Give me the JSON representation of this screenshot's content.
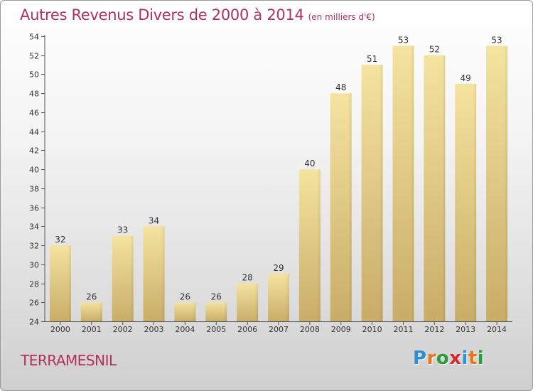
{
  "header": {
    "title": "Autres Revenus Divers de 2000 à 2014",
    "unit": "(en milliers d'€)"
  },
  "footer": {
    "place": "TERRAMESNIL",
    "brand_letters": [
      "P",
      "r",
      "o",
      "x",
      "i",
      "t",
      "i"
    ],
    "brand_colors": [
      "#2f8fd3",
      "#e8761c",
      "#2a9a3a",
      "#d6262e",
      "#2f8fd3",
      "#e8761c",
      "#2a9a3a"
    ]
  },
  "chart_data": {
    "type": "bar",
    "categories": [
      "2000",
      "2001",
      "2002",
      "2003",
      "2004",
      "2005",
      "2006",
      "2007",
      "2008",
      "2009",
      "2010",
      "2011",
      "2012",
      "2013",
      "2014"
    ],
    "values": [
      32,
      26,
      33,
      34,
      26,
      26,
      28,
      29,
      40,
      48,
      51,
      53,
      52,
      49,
      53
    ],
    "ylim": [
      24,
      54
    ],
    "yticks": [
      24,
      26,
      28,
      30,
      32,
      34,
      36,
      38,
      40,
      42,
      44,
      46,
      48,
      50,
      52,
      54
    ],
    "title": "Autres Revenus Divers de 2000 à 2014",
    "xlabel": "",
    "ylabel": "",
    "grid": false,
    "bar_color_top": "#f5e3a0",
    "bar_color_bottom": "#c8ad68"
  }
}
